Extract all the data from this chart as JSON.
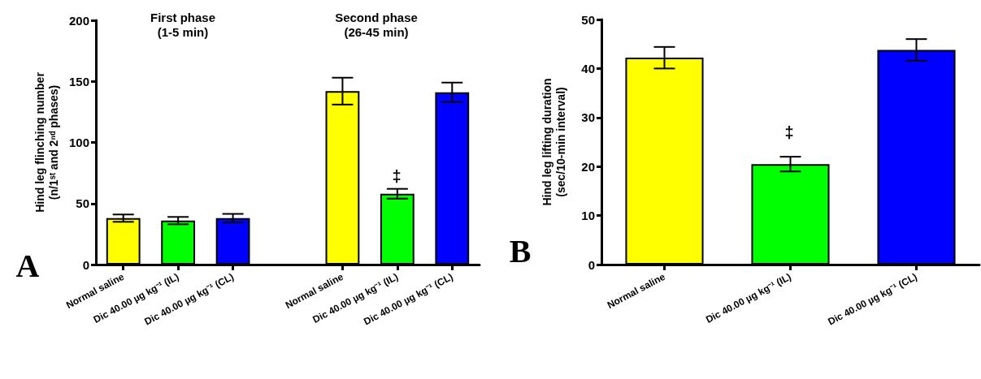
{
  "chart_data": [
    {
      "type": "bar",
      "ylabel": "Hind leg flinching number\n(n/1ˢᵗ and 2ⁿᵈ phases)",
      "categories": [
        "Normal saline",
        "Dic 40.00 µg kg⁻¹ (IL)",
        "Dic 40.00 µg kg⁻¹ (CL)",
        null,
        "Normal saline",
        "Dic 40.00 µg kg⁻¹ (IL)",
        "Dic 40.00 µg kg⁻¹ (CL)"
      ],
      "values": [
        38,
        36,
        38,
        null,
        142,
        58,
        141
      ],
      "errors": [
        3,
        3,
        3.5,
        null,
        11,
        4,
        8
      ],
      "colors": [
        "#ffff00",
        "#00ff00",
        "#0000ff",
        null,
        "#ffff00",
        "#00ff00",
        "#0000ff"
      ],
      "ylim": [
        0,
        200
      ],
      "yticks": [
        0,
        50,
        100,
        150,
        200
      ],
      "annotations": [
        "A",
        "First phase\n(1-5 min)",
        "Second phase\n(26-45 min)",
        "‡"
      ]
    },
    {
      "type": "bar",
      "ylabel": "Hind leg lifting duration\n(sec/10-min interval)",
      "categories": [
        "Normal saline",
        "Dic 40.00 µg kg⁻¹ (IL)",
        "Dic 40.00 µg kg⁻¹ (CL)"
      ],
      "values": [
        42.2,
        20.5,
        43.8
      ],
      "errors": [
        2.2,
        1.5,
        2.2
      ],
      "colors": [
        "#ffff00",
        "#00ff00",
        "#0000ff"
      ],
      "ylim": [
        0,
        50
      ],
      "yticks": [
        0,
        10,
        20,
        30,
        40,
        50
      ],
      "annotations": [
        "B",
        "‡"
      ]
    }
  ]
}
